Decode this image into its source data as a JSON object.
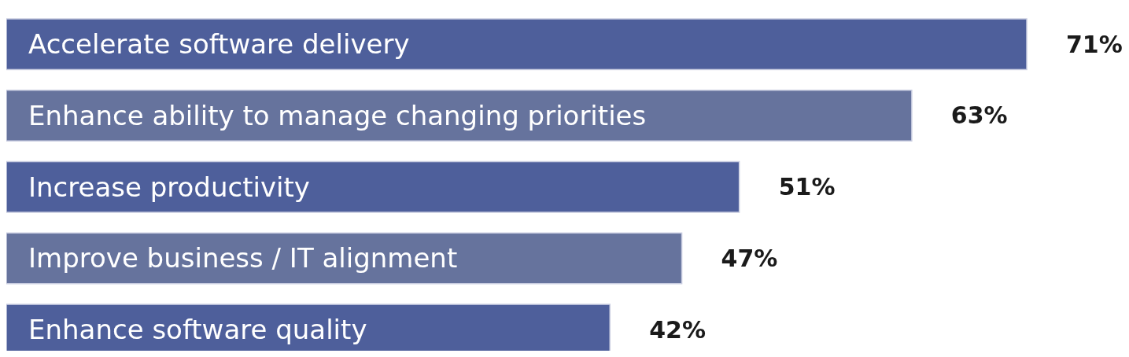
{
  "chart_data": {
    "type": "bar",
    "orientation": "horizontal",
    "categories": [
      "Accelerate software delivery",
      "Enhance ability to manage changing priorities",
      "Increase productivity",
      "Improve business / IT alignment",
      "Enhance software quality"
    ],
    "values": [
      71,
      63,
      51,
      47,
      42
    ],
    "colors": [
      "#4e5f9b",
      "#66739d",
      "#4e5f9b",
      "#66739d",
      "#4e5f9b"
    ],
    "value_labels": [
      "71%",
      "63%",
      "51%",
      "47%",
      "42%"
    ]
  }
}
